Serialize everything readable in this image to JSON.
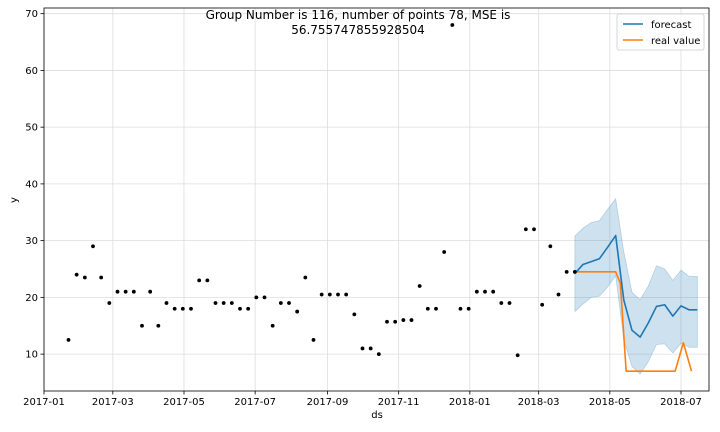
{
  "chart_data": {
    "type": "line",
    "title_line1": "Group Number is 116, number of points 78, MSE is",
    "title_line2": "56.755747855928504",
    "xlabel": "ds",
    "ylabel": "y",
    "xlim": [
      "2017-01-01",
      "2018-07-25"
    ],
    "ylim": [
      3.5,
      71
    ],
    "x_ticks": [
      "2017-01",
      "2017-03",
      "2017-05",
      "2017-07",
      "2017-09",
      "2017-11",
      "2018-01",
      "2018-03",
      "2018-05",
      "2018-07"
    ],
    "x_tick_dates": [
      "2017-01-01",
      "2017-03-01",
      "2017-05-01",
      "2017-07-01",
      "2017-09-01",
      "2017-11-01",
      "2018-01-01",
      "2018-03-01",
      "2018-05-01",
      "2018-07-01"
    ],
    "y_ticks": [
      10,
      20,
      30,
      40,
      50,
      60,
      70
    ],
    "grid": true,
    "legend_position": "top-right",
    "legend": [
      {
        "name": "forecast",
        "color": "#1f77b4"
      },
      {
        "name": "real value",
        "color": "#ff7f0e"
      }
    ],
    "observed": {
      "color": "#000000",
      "points": [
        [
          "2017-01-22",
          12.5
        ],
        [
          "2017-01-29",
          24
        ],
        [
          "2017-02-05",
          23.5
        ],
        [
          "2017-02-12",
          29
        ],
        [
          "2017-02-19",
          23.5
        ],
        [
          "2017-02-26",
          19
        ],
        [
          "2017-03-05",
          21
        ],
        [
          "2017-03-12",
          21
        ],
        [
          "2017-03-19",
          21
        ],
        [
          "2017-03-26",
          15
        ],
        [
          "2017-04-02",
          21
        ],
        [
          "2017-04-09",
          15
        ],
        [
          "2017-04-16",
          19
        ],
        [
          "2017-04-23",
          18
        ],
        [
          "2017-04-30",
          18
        ],
        [
          "2017-05-07",
          18
        ],
        [
          "2017-05-14",
          23
        ],
        [
          "2017-05-21",
          23
        ],
        [
          "2017-05-28",
          19
        ],
        [
          "2017-06-04",
          19
        ],
        [
          "2017-06-11",
          19
        ],
        [
          "2017-06-18",
          18
        ],
        [
          "2017-06-25",
          18
        ],
        [
          "2017-07-02",
          20
        ],
        [
          "2017-07-09",
          20
        ],
        [
          "2017-07-16",
          15
        ],
        [
          "2017-07-23",
          19
        ],
        [
          "2017-07-30",
          19
        ],
        [
          "2017-08-06",
          17.5
        ],
        [
          "2017-08-13",
          23.5
        ],
        [
          "2017-08-20",
          12.5
        ],
        [
          "2017-08-27",
          20.5
        ],
        [
          "2017-09-03",
          20.5
        ],
        [
          "2017-09-10",
          20.5
        ],
        [
          "2017-09-17",
          20.5
        ],
        [
          "2017-09-24",
          17
        ],
        [
          "2017-10-01",
          11
        ],
        [
          "2017-10-08",
          11
        ],
        [
          "2017-10-15",
          10
        ],
        [
          "2017-10-22",
          15.7
        ],
        [
          "2017-10-29",
          15.7
        ],
        [
          "2017-11-05",
          16
        ],
        [
          "2017-11-12",
          16
        ],
        [
          "2017-11-19",
          22
        ],
        [
          "2017-11-26",
          18
        ],
        [
          "2017-12-03",
          18
        ],
        [
          "2017-12-10",
          28
        ],
        [
          "2017-12-17",
          68
        ],
        [
          "2017-12-24",
          18
        ],
        [
          "2017-12-31",
          18
        ],
        [
          "2018-01-07",
          21
        ],
        [
          "2018-01-14",
          21
        ],
        [
          "2018-01-21",
          21
        ],
        [
          "2018-01-28",
          19
        ],
        [
          "2018-02-04",
          19
        ],
        [
          "2018-02-11",
          9.8
        ],
        [
          "2018-02-18",
          32
        ],
        [
          "2018-02-25",
          32
        ],
        [
          "2018-03-04",
          18.7
        ],
        [
          "2018-03-11",
          29
        ],
        [
          "2018-03-18",
          20.5
        ],
        [
          "2018-03-25",
          24.5
        ],
        [
          "2018-04-01",
          24.5
        ]
      ]
    },
    "series": [
      {
        "name": "forecast",
        "color": "#1f77b4",
        "x": [
          "2018-04-01",
          "2018-04-08",
          "2018-04-15",
          "2018-04-22",
          "2018-04-29",
          "2018-05-06",
          "2018-05-13",
          "2018-05-20",
          "2018-05-27",
          "2018-06-03",
          "2018-06-10",
          "2018-06-17",
          "2018-06-24",
          "2018-07-01",
          "2018-07-08",
          "2018-07-15"
        ],
        "values": [
          24.2,
          25.8,
          26.3,
          26.8,
          28.8,
          30.9,
          19.5,
          14.2,
          13,
          15.5,
          18.4,
          18.7,
          16.7,
          18.5,
          17.8,
          17.8
        ],
        "upper": [
          30.8,
          32.2,
          33.2,
          33.5,
          35.5,
          37.4,
          28,
          20.9,
          19.6,
          22,
          25.6,
          25,
          23,
          24.8,
          23.7,
          23.7
        ],
        "lower": [
          17.5,
          18.8,
          20,
          20.2,
          21.8,
          23.8,
          12.5,
          7.8,
          6.5,
          8.7,
          11.7,
          11.8,
          10.2,
          11.9,
          11.2,
          11.2
        ]
      },
      {
        "name": "real value",
        "color": "#ff7f0e",
        "x": [
          "2018-04-01",
          "2018-04-08",
          "2018-04-15",
          "2018-04-22",
          "2018-04-29",
          "2018-05-06",
          "2018-05-10",
          "2018-05-15",
          "2018-05-22",
          "2018-05-29",
          "2018-06-05",
          "2018-06-12",
          "2018-06-19",
          "2018-06-26",
          "2018-07-03",
          "2018-07-10"
        ],
        "values": [
          24.5,
          24.5,
          24.5,
          24.5,
          24.5,
          24.5,
          22.5,
          7,
          7,
          7,
          7,
          7,
          7,
          7,
          12,
          7
        ]
      }
    ]
  }
}
